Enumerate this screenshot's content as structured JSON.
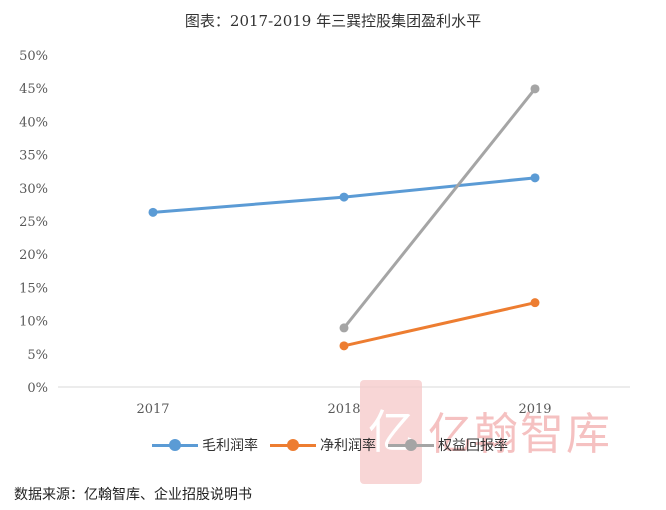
{
  "title": "图表：2017-2019 年三巽控股集团盈利水平",
  "source": "数据来源：亿翰智库、企业招股说明书",
  "watermark": {
    "mark": "亿",
    "text": "亿翰智库"
  },
  "chart_data": {
    "type": "line",
    "categories": [
      "2017",
      "2018",
      "2019"
    ],
    "ylim": [
      0,
      50
    ],
    "yticks": [
      0,
      5,
      10,
      15,
      20,
      25,
      30,
      35,
      40,
      45,
      50
    ],
    "ytick_labels": [
      "0%",
      "5%",
      "10%",
      "15%",
      "20%",
      "25%",
      "30%",
      "35%",
      "40%",
      "45%",
      "50%"
    ],
    "grid": false,
    "legend_position": "bottom",
    "series": [
      {
        "name": "毛利润率",
        "color": "#5b9bd5",
        "values": [
          26.3,
          28.6,
          31.5
        ]
      },
      {
        "name": "净利润率",
        "color": "#ed7d31",
        "values": [
          null,
          6.2,
          12.7
        ]
      },
      {
        "name": "权益回报率",
        "color": "#a5a5a5",
        "values": [
          null,
          8.9,
          44.9
        ]
      }
    ]
  }
}
